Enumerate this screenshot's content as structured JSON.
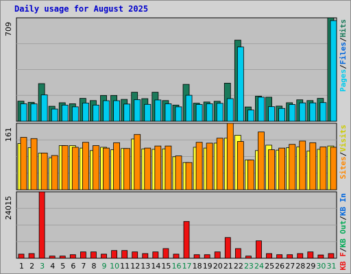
{
  "title": "Daily usage for August 2025",
  "x_labels": [
    "1",
    "2",
    "3",
    "4",
    "5",
    "6",
    "7",
    "8",
    "9",
    "10",
    "11",
    "12",
    "13",
    "14",
    "15",
    "16",
    "17",
    "18",
    "19",
    "20",
    "21",
    "22",
    "23",
    "24",
    "25",
    "26",
    "27",
    "28",
    "29",
    "30",
    "31"
  ],
  "weekend_days": [
    3,
    9,
    10,
    16,
    17,
    23,
    24,
    30,
    31
  ],
  "colors": {
    "plot_bg": "#c0c0c0",
    "frame_bg": "#d2d2d2",
    "grid": "#a0a0a0",
    "hits": "#1a7a5a",
    "files": "#00ccee",
    "pages": "#00ccee",
    "visits": "#ffff33",
    "sites": "#ff8800",
    "kbin": "#0088cc",
    "kbout": "#00aa55",
    "kbf": "#ee1111",
    "weekday_tick": "#000000",
    "weekend_tick": "#008844"
  },
  "panels": {
    "hits_files": {
      "max_label": "709",
      "side_labels": [
        {
          "text": "Pages",
          "color": "#00ccee"
        },
        {
          "text": "/",
          "color": "#000000"
        },
        {
          "text": "Files",
          "color": "#0066dd"
        },
        {
          "text": "/",
          "color": "#000000"
        },
        {
          "text": "Hits",
          "color": "#1a7a5a"
        }
      ]
    },
    "visits_sites": {
      "max_label": "161",
      "side_labels": [
        {
          "text": "Sites",
          "color": "#ff8800"
        },
        {
          "text": "/",
          "color": "#000000"
        },
        {
          "text": "Visits",
          "color": "#cccc00"
        }
      ]
    },
    "kbytes": {
      "max_label": "24015",
      "side_labels": [
        {
          "text": "KB F",
          "color": "#ee1111"
        },
        {
          "text": "/",
          "color": "#000000"
        },
        {
          "text": "KB Out",
          "color": "#00aa55"
        },
        {
          "text": "/",
          "color": "#000000"
        },
        {
          "text": "KB In",
          "color": "#0066dd"
        }
      ]
    }
  },
  "chart_data": [
    {
      "type": "bar",
      "name": "Hits / Files / Pages",
      "ylim": [
        0,
        709
      ],
      "categories": [
        "1",
        "2",
        "3",
        "4",
        "5",
        "6",
        "7",
        "8",
        "9",
        "10",
        "11",
        "12",
        "13",
        "14",
        "15",
        "16",
        "17",
        "18",
        "19",
        "20",
        "21",
        "22",
        "23",
        "24",
        "25",
        "26",
        "27",
        "28",
        "29",
        "30",
        "31"
      ],
      "series": [
        {
          "name": "Hits",
          "values": [
            138,
            130,
            258,
            103,
            127,
            120,
            157,
            142,
            177,
            177,
            150,
            199,
            155,
            199,
            142,
            111,
            253,
            124,
            132,
            137,
            261,
            556,
            98,
            172,
            165,
            104,
            127,
            147,
            142,
            157,
            709
          ]
        },
        {
          "name": "Files",
          "values": [
            120,
            119,
            181,
            84,
            111,
            99,
            125,
            111,
            141,
            141,
            118,
            148,
            116,
            146,
            120,
            99,
            178,
            115,
            120,
            123,
            155,
            509,
            77,
            165,
            100,
            88,
            115,
            126,
            126,
            128,
            690
          ]
        },
        {
          "name": "Pages",
          "values": [
            120,
            119,
            181,
            84,
            111,
            99,
            125,
            111,
            141,
            141,
            118,
            148,
            116,
            146,
            120,
            99,
            178,
            115,
            120,
            123,
            155,
            509,
            77,
            165,
            100,
            88,
            115,
            126,
            126,
            128,
            690
          ]
        }
      ]
    },
    {
      "type": "bar",
      "name": "Visits / Sites",
      "ylim": [
        0,
        161
      ],
      "categories": [
        "1",
        "2",
        "3",
        "4",
        "5",
        "6",
        "7",
        "8",
        "9",
        "10",
        "11",
        "12",
        "13",
        "14",
        "15",
        "16",
        "17",
        "18",
        "19",
        "20",
        "21",
        "22",
        "23",
        "24",
        "25",
        "26",
        "27",
        "28",
        "29",
        "30",
        "31"
      ],
      "series": [
        {
          "name": "Visits",
          "values": [
            112,
            102,
            89,
            77,
            107,
            107,
            101,
            95,
            103,
            97,
            100,
            123,
            99,
            98,
            99,
            80,
            66,
            103,
            101,
            113,
            125,
            132,
            72,
            95,
            108,
            96,
            102,
            104,
            94,
            98,
            106
          ]
        },
        {
          "name": "Sites",
          "values": [
            127,
            124,
            89,
            83,
            107,
            103,
            115,
            107,
            101,
            114,
            100,
            134,
            101,
            106,
            106,
            82,
            66,
            115,
            113,
            125,
            161,
            117,
            72,
            140,
            97,
            101,
            110,
            118,
            114,
            104,
            103
          ]
        }
      ]
    },
    {
      "type": "bar",
      "name": "KBytes",
      "ylim": [
        0,
        24015
      ],
      "categories": [
        "1",
        "2",
        "3",
        "4",
        "5",
        "6",
        "7",
        "8",
        "9",
        "10",
        "11",
        "12",
        "13",
        "14",
        "15",
        "16",
        "17",
        "18",
        "19",
        "20",
        "21",
        "22",
        "23",
        "24",
        "25",
        "26",
        "27",
        "28",
        "29",
        "30",
        "31"
      ],
      "series": [
        {
          "name": "KB F",
          "values": [
            1500,
            1700,
            24015,
            800,
            800,
            1300,
            2300,
            2300,
            1500,
            2800,
            2800,
            2300,
            1700,
            2300,
            3500,
            1500,
            13300,
            1300,
            1300,
            2300,
            7500,
            3500,
            800,
            6300,
            1700,
            1300,
            1300,
            1700,
            2300,
            1200,
            1700
          ]
        }
      ]
    }
  ]
}
